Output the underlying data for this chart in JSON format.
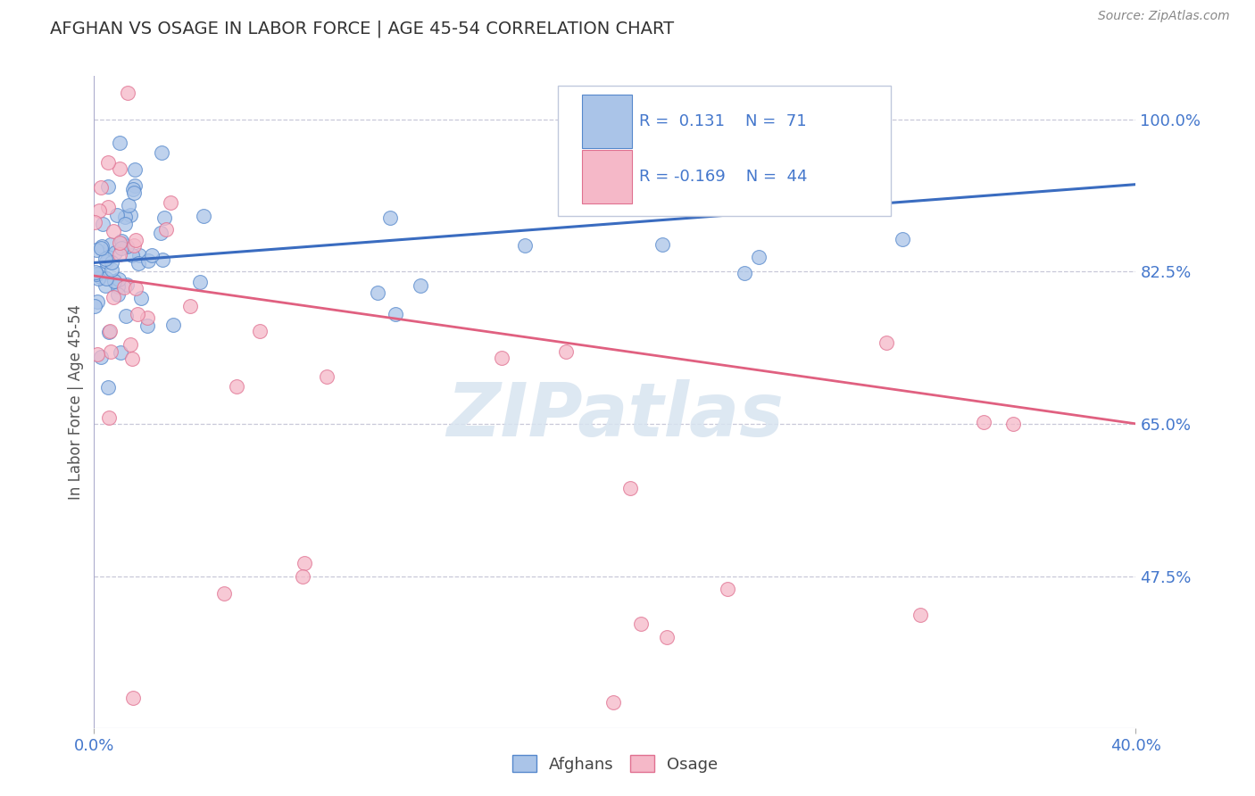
{
  "title": "AFGHAN VS OSAGE IN LABOR FORCE | AGE 45-54 CORRELATION CHART",
  "source_text": "Source: ZipAtlas.com",
  "ylabel": "In Labor Force | Age 45-54",
  "xlim": [
    0.0,
    0.4
  ],
  "ylim": [
    0.3,
    1.05
  ],
  "xtick_labels": [
    "0.0%",
    "40.0%"
  ],
  "ytick_positions": [
    0.475,
    0.65,
    0.825,
    1.0
  ],
  "ytick_labels": [
    "47.5%",
    "65.0%",
    "82.5%",
    "100.0%"
  ],
  "afghan_fill_color": "#aac4e8",
  "afghan_edge_color": "#5588cc",
  "osage_fill_color": "#f5b8c8",
  "osage_edge_color": "#e07090",
  "afghan_line_color": "#3a6cc0",
  "osage_line_color": "#e06080",
  "watermark_color": "#d8e4f0",
  "legend_text_color": "#4477cc",
  "afghan_R": 0.131,
  "afghan_N": 71,
  "osage_R": -0.169,
  "osage_N": 44,
  "afghan_line_y0": 0.835,
  "afghan_line_y1": 0.925,
  "osage_line_y0": 0.82,
  "osage_line_y1": 0.65
}
